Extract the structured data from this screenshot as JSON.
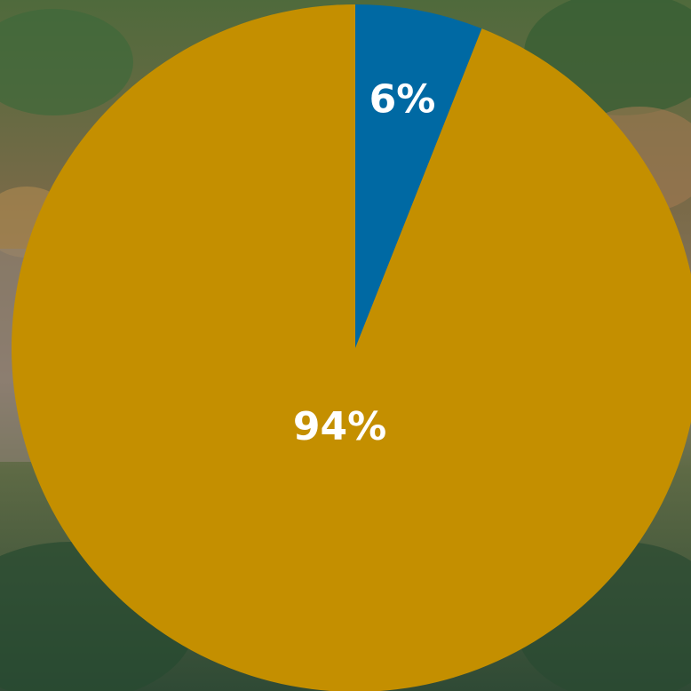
{
  "chart_data": {
    "type": "pie",
    "values": [
      6,
      94
    ],
    "value_labels": [
      "6%",
      "94%"
    ],
    "colors": [
      "#0069a3",
      "#c48f00"
    ]
  }
}
